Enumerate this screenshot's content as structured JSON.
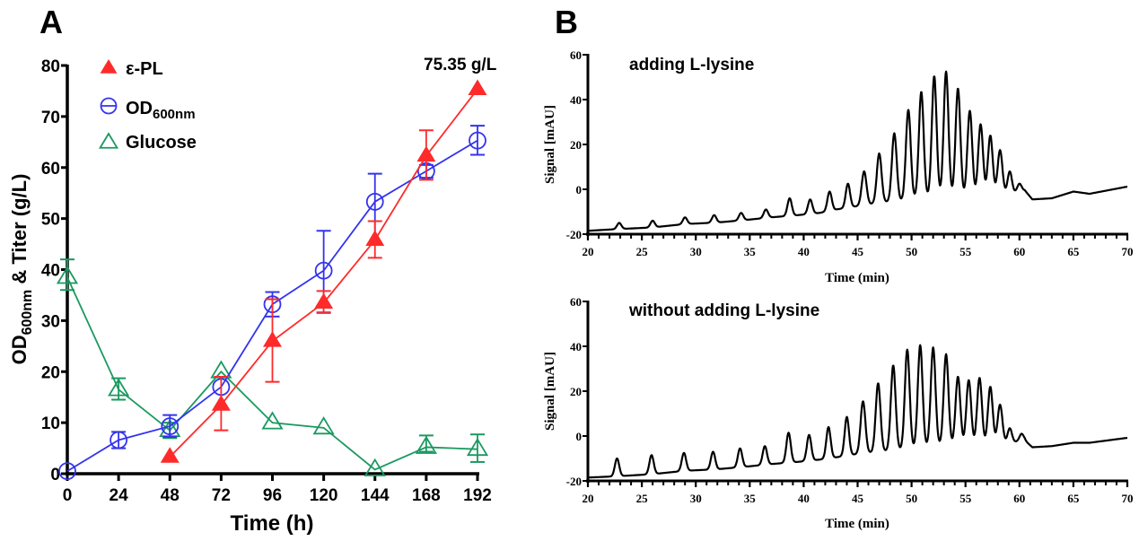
{
  "figure": {
    "panel_a_letter": "A",
    "panel_b_letter": "B"
  },
  "chart_data": [
    {
      "type": "line",
      "panel": "A",
      "title": "",
      "annotation": "75.35 g/L",
      "xlabel": "Time (h)",
      "ylabel_main": "OD",
      "ylabel_sub": "600nm",
      "ylabel_tail": " & Titer (g/L)",
      "xlim": [
        0,
        192
      ],
      "ylim": [
        0,
        80
      ],
      "xticks": [
        0,
        24,
        48,
        72,
        96,
        120,
        144,
        168,
        192
      ],
      "yticks": [
        0,
        10,
        20,
        30,
        40,
        50,
        60,
        70,
        80
      ],
      "grid": false,
      "legend_position": "top-left",
      "series": [
        {
          "name": "ε-PL",
          "legend_main": "ε-PL",
          "legend_sub": "",
          "marker": "filled-triangle",
          "color": "#ff2a2a",
          "x": [
            48,
            72,
            96,
            120,
            144,
            168,
            192
          ],
          "y": [
            3.3,
            13.5,
            26.0,
            33.5,
            45.8,
            62.3,
            75.35
          ],
          "err_low": [
            null,
            8.5,
            18.0,
            31.5,
            42.3,
            57.6,
            null
          ],
          "err_high": [
            null,
            19.0,
            34.2,
            35.8,
            49.5,
            67.3,
            null
          ]
        },
        {
          "name": "OD600nm",
          "legend_main": "OD",
          "legend_sub": "600nm",
          "marker": "open-circle",
          "color": "#3333ee",
          "x": [
            0,
            24,
            48,
            72,
            96,
            120,
            144,
            168,
            192
          ],
          "y": [
            0.5,
            6.6,
            9.3,
            17.0,
            33.2,
            39.8,
            53.3,
            59.3,
            65.3
          ],
          "err_low": [
            null,
            5.0,
            7.2,
            null,
            30.8,
            31.6,
            45.0,
            58.0,
            62.5
          ],
          "err_high": [
            null,
            8.2,
            11.5,
            null,
            35.6,
            47.6,
            58.8,
            60.5,
            68.2
          ]
        },
        {
          "name": "Glucose",
          "legend_main": "Glucose",
          "legend_sub": "",
          "marker": "open-triangle",
          "color": "#1a9960",
          "x": [
            0,
            24,
            48,
            72,
            96,
            120,
            144,
            168,
            192
          ],
          "y": [
            38.5,
            16.5,
            8.5,
            20.0,
            10.0,
            9.0,
            0.8,
            5.2,
            4.8
          ],
          "err_low": [
            36.0,
            14.5,
            7.0,
            null,
            null,
            null,
            null,
            4.3,
            2.3
          ],
          "err_high": [
            42.0,
            18.7,
            10.0,
            null,
            null,
            null,
            null,
            7.5,
            7.7
          ]
        }
      ]
    },
    {
      "type": "line",
      "panel": "B-top",
      "title": "adding L-lysine",
      "xlabel": "Time (min)",
      "ylabel": "Signal [mAU]",
      "xlim": [
        20,
        70
      ],
      "ylim": [
        -20,
        60
      ],
      "xticks": [
        20,
        25,
        30,
        35,
        40,
        45,
        50,
        55,
        60,
        65,
        70
      ],
      "yticks": [
        -20,
        0,
        20,
        40,
        60
      ],
      "grid": false,
      "baseline": [
        [
          20,
          -18.5
        ],
        [
          22.5,
          -17.8
        ],
        [
          26,
          -17.0
        ],
        [
          29,
          -15.5
        ],
        [
          32,
          -14.8
        ],
        [
          35,
          -13.5
        ],
        [
          37,
          -12.5
        ],
        [
          39.5,
          -11.5
        ],
        [
          41.5,
          -10.5
        ],
        [
          43,
          -9.0
        ],
        [
          45,
          -7.5
        ],
        [
          47,
          -6.0
        ],
        [
          49,
          -5.0
        ],
        [
          51,
          -3.5
        ],
        [
          53,
          -3.0
        ],
        [
          55,
          -3.0
        ],
        [
          57,
          -3.0
        ],
        [
          59,
          -2.0
        ],
        [
          60.5,
          -0.5
        ],
        [
          61.2,
          -4.5
        ],
        [
          63,
          -4.0
        ],
        [
          65,
          -1.0
        ],
        [
          66.5,
          -2.0
        ],
        [
          70,
          1.2
        ]
      ],
      "peaks": [
        {
          "t": 22.9,
          "h": -15.0
        },
        {
          "t": 26.0,
          "h": -14.0
        },
        {
          "t": 29.0,
          "h": -12.5
        },
        {
          "t": 31.7,
          "h": -11.5
        },
        {
          "t": 34.2,
          "h": -10.5
        },
        {
          "t": 36.5,
          "h": -9.0
        },
        {
          "t": 38.7,
          "h": -4.0
        },
        {
          "t": 40.6,
          "h": -4.5
        },
        {
          "t": 42.4,
          "h": -1.0
        },
        {
          "t": 44.1,
          "h": 2.5
        },
        {
          "t": 45.6,
          "h": 8.0
        },
        {
          "t": 47.0,
          "h": 16.0
        },
        {
          "t": 48.4,
          "h": 25.0
        },
        {
          "t": 49.7,
          "h": 35.5
        },
        {
          "t": 50.9,
          "h": 43.5
        },
        {
          "t": 52.1,
          "h": 50.5
        },
        {
          "t": 53.2,
          "h": 52.5
        },
        {
          "t": 54.3,
          "h": 45.0
        },
        {
          "t": 55.4,
          "h": 35.0
        },
        {
          "t": 56.4,
          "h": 29.0
        },
        {
          "t": 57.3,
          "h": 24.0
        },
        {
          "t": 58.2,
          "h": 17.5
        },
        {
          "t": 59.1,
          "h": 8.0
        },
        {
          "t": 60.0,
          "h": 2.5
        }
      ]
    },
    {
      "type": "line",
      "panel": "B-bottom",
      "title": "without adding L-lysine",
      "xlabel": "Time (min)",
      "ylabel": "Signal [mAU]",
      "xlim": [
        20,
        70
      ],
      "ylim": [
        -20,
        60
      ],
      "xticks": [
        20,
        25,
        30,
        35,
        40,
        45,
        50,
        55,
        60,
        65,
        70
      ],
      "yticks": [
        -20,
        0,
        20,
        40,
        60
      ],
      "grid": false,
      "baseline": [
        [
          20,
          -18.5
        ],
        [
          22.5,
          -18.0
        ],
        [
          26,
          -17.0
        ],
        [
          29,
          -15.5
        ],
        [
          32,
          -14.8
        ],
        [
          35,
          -13.5
        ],
        [
          37,
          -12.5
        ],
        [
          39.5,
          -11.5
        ],
        [
          41.5,
          -10.5
        ],
        [
          43,
          -9.5
        ],
        [
          45,
          -8.0
        ],
        [
          47,
          -7.0
        ],
        [
          49,
          -6.0
        ],
        [
          51,
          -5.0
        ],
        [
          53,
          -4.0
        ],
        [
          55,
          -4.0
        ],
        [
          57,
          -4.0
        ],
        [
          59,
          -3.0
        ],
        [
          60.5,
          -2.0
        ],
        [
          61.2,
          -5.0
        ],
        [
          63,
          -4.5
        ],
        [
          65,
          -3.0
        ],
        [
          66.5,
          -3.0
        ],
        [
          70,
          -0.8
        ]
      ],
      "peaks": [
        {
          "t": 22.7,
          "h": -10.0
        },
        {
          "t": 25.9,
          "h": -8.5
        },
        {
          "t": 28.9,
          "h": -7.5
        },
        {
          "t": 31.6,
          "h": -7.0
        },
        {
          "t": 34.1,
          "h": -5.5
        },
        {
          "t": 36.4,
          "h": -4.5
        },
        {
          "t": 38.6,
          "h": 1.5
        },
        {
          "t": 40.5,
          "h": 0.5
        },
        {
          "t": 42.3,
          "h": 4.0
        },
        {
          "t": 44.0,
          "h": 8.5
        },
        {
          "t": 45.5,
          "h": 15.5
        },
        {
          "t": 46.9,
          "h": 23.5
        },
        {
          "t": 48.3,
          "h": 31.5
        },
        {
          "t": 49.6,
          "h": 38.5
        },
        {
          "t": 50.8,
          "h": 40.5
        },
        {
          "t": 52.0,
          "h": 39.5
        },
        {
          "t": 53.2,
          "h": 36.5
        },
        {
          "t": 54.3,
          "h": 26.5
        },
        {
          "t": 55.3,
          "h": 25.0
        },
        {
          "t": 56.3,
          "h": 26.0
        },
        {
          "t": 57.3,
          "h": 22.0
        },
        {
          "t": 58.2,
          "h": 14.0
        },
        {
          "t": 59.1,
          "h": 3.5
        },
        {
          "t": 60.2,
          "h": 1.0
        }
      ]
    }
  ]
}
